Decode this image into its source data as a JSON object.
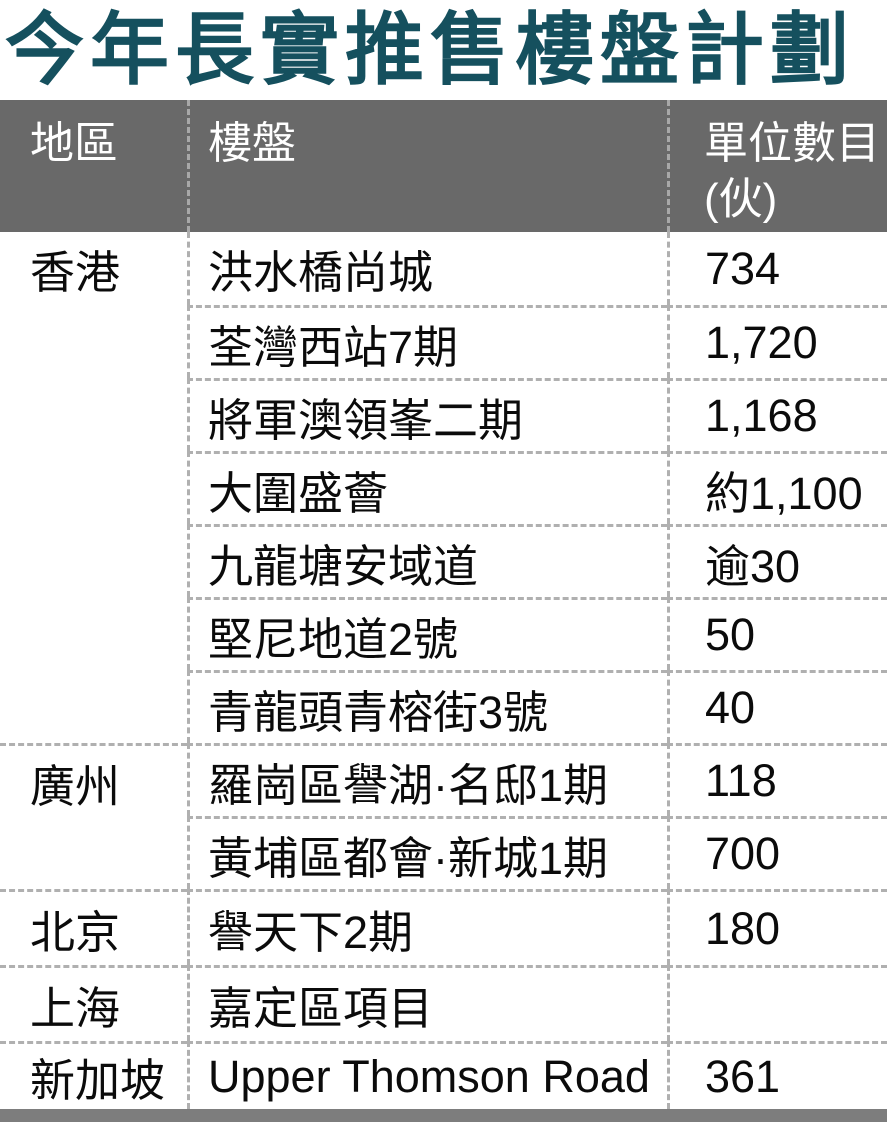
{
  "page": {
    "title": "今年長實推售樓盤計劃",
    "colors": {
      "title_text": "#15505e",
      "header_bg": "#696969",
      "header_text": "#ffffff",
      "body_text": "#0b0b0b",
      "dash_line": "#b0b0b0",
      "footer_bar": "#7d7d7d"
    }
  },
  "table": {
    "headers": {
      "region": "地區",
      "property": "樓盤",
      "units_line1": "單位數目",
      "units_line2": "(伙)"
    },
    "groups": [
      {
        "region": "香港",
        "rows": [
          {
            "property": "洪水橋尚城",
            "units": "734"
          },
          {
            "property": "荃灣西站7期",
            "units": "1,720"
          },
          {
            "property": "將軍澳領峯二期",
            "units": "1,168"
          },
          {
            "property": "大圍盛薈",
            "units": "約1,100"
          },
          {
            "property": "九龍塘安域道",
            "units": "逾30"
          },
          {
            "property": "堅尼地道2號",
            "units": "50"
          },
          {
            "property": "青龍頭青榕街3號",
            "units": "40"
          }
        ]
      },
      {
        "region": "廣州",
        "rows": [
          {
            "property": "羅崗區譽湖·名邸1期",
            "units": "118"
          },
          {
            "property": "黃埔區都會·新城1期",
            "units": "700"
          }
        ]
      },
      {
        "region": "北京",
        "rows": [
          {
            "property": "譽天下2期",
            "units": "180"
          }
        ]
      },
      {
        "region": "上海",
        "rows": [
          {
            "property": "嘉定區項目",
            "units": ""
          }
        ]
      },
      {
        "region": "新加坡",
        "rows": [
          {
            "property": "Upper Thomson Road",
            "units": "361"
          }
        ]
      }
    ]
  },
  "chart_data": {
    "type": "table",
    "title": "今年長實推售樓盤計劃",
    "columns": [
      "地區",
      "樓盤",
      "單位數目(伙)"
    ],
    "rows": [
      [
        "香港",
        "洪水橋尚城",
        "734"
      ],
      [
        "香港",
        "荃灣西站7期",
        "1,720"
      ],
      [
        "香港",
        "將軍澳領峯二期",
        "1,168"
      ],
      [
        "香港",
        "大圍盛薈",
        "約1,100"
      ],
      [
        "香港",
        "九龍塘安域道",
        "逾30"
      ],
      [
        "香港",
        "堅尼地道2號",
        "50"
      ],
      [
        "香港",
        "青龍頭青榕街3號",
        "40"
      ],
      [
        "廣州",
        "羅崗區譽湖·名邸1期",
        "118"
      ],
      [
        "廣州",
        "黃埔區都會·新城1期",
        "700"
      ],
      [
        "北京",
        "譽天下2期",
        "180"
      ],
      [
        "上海",
        "嘉定區項目",
        ""
      ],
      [
        "新加坡",
        "Upper Thomson Road",
        "361"
      ]
    ]
  }
}
